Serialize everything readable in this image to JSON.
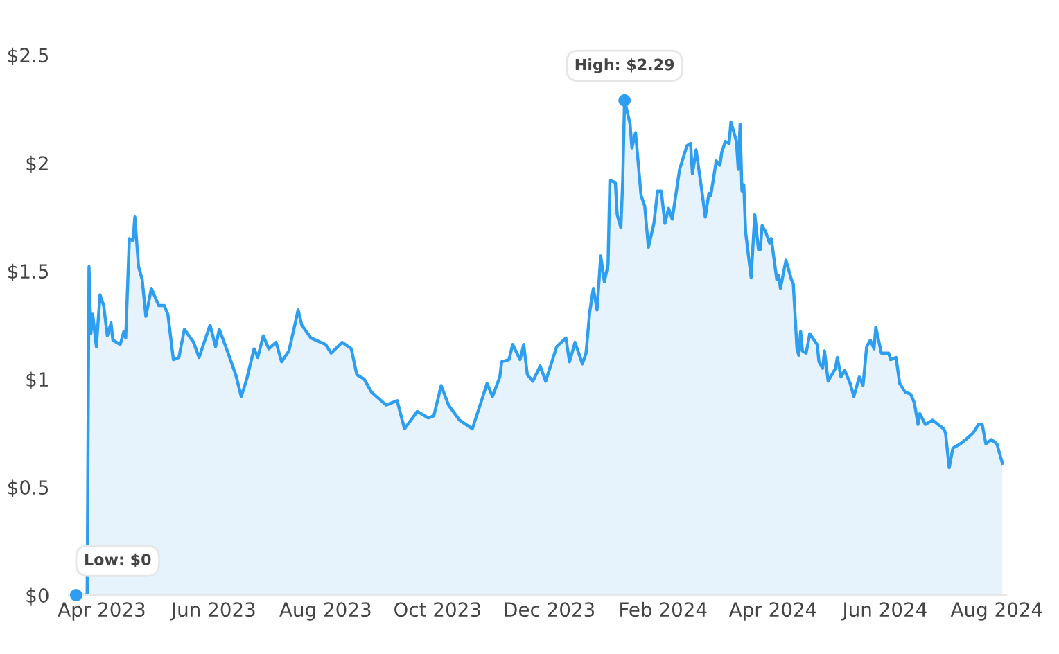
{
  "chart_data": {
    "type": "area",
    "color": "#2e9ef0",
    "grid": false,
    "legend": false,
    "marker": "none",
    "line_style": "solid",
    "xlim": [
      "2023-03-14",
      "2024-08-06"
    ],
    "ylim": [
      0,
      2.5
    ],
    "xticks": [
      {
        "value": "2023-04-01",
        "label": "Apr 2023"
      },
      {
        "value": "2023-06-01",
        "label": "Jun 2023"
      },
      {
        "value": "2023-08-01",
        "label": "Aug 2023"
      },
      {
        "value": "2023-10-01",
        "label": "Oct 2023"
      },
      {
        "value": "2023-12-01",
        "label": "Dec 2023"
      },
      {
        "value": "2024-02-01",
        "label": "Feb 2024"
      },
      {
        "value": "2024-04-01",
        "label": "Apr 2024"
      },
      {
        "value": "2024-06-01",
        "label": "Jun 2024"
      },
      {
        "value": "2024-08-01",
        "label": "Aug 2024"
      }
    ],
    "yticks": [
      {
        "value": 0,
        "label": "$0"
      },
      {
        "value": 0.5,
        "label": "$0.5"
      },
      {
        "value": 1,
        "label": "$1"
      },
      {
        "value": 1.5,
        "label": "$1.5"
      },
      {
        "value": 2,
        "label": "$2"
      },
      {
        "value": 2.5,
        "label": "$2.5"
      }
    ],
    "annotations": [
      {
        "text": "High: $2.29",
        "x": "2024-01-11",
        "y": 2.29
      },
      {
        "text": "Low: $0",
        "x": "2023-03-18",
        "y": 0
      }
    ],
    "x": [
      "2023-03-18",
      "2023-03-24",
      "2023-03-25",
      "2023-03-26",
      "2023-03-27",
      "2023-03-29",
      "2023-03-31",
      "2023-04-02",
      "2023-04-04",
      "2023-04-06",
      "2023-04-07",
      "2023-04-11",
      "2023-04-13",
      "2023-04-14",
      "2023-04-16",
      "2023-04-18",
      "2023-04-19",
      "2023-04-21",
      "2023-04-23",
      "2023-04-25",
      "2023-04-28",
      "2023-05-02",
      "2023-05-05",
      "2023-05-07",
      "2023-05-10",
      "2023-05-13",
      "2023-05-16",
      "2023-05-21",
      "2023-05-24",
      "2023-05-30",
      "2023-06-02",
      "2023-06-04",
      "2023-06-08",
      "2023-06-13",
      "2023-06-16",
      "2023-06-19",
      "2023-06-23",
      "2023-06-25",
      "2023-06-28",
      "2023-07-01",
      "2023-07-05",
      "2023-07-08",
      "2023-07-12",
      "2023-07-16",
      "2023-07-17",
      "2023-07-19",
      "2023-07-24",
      "2023-08-01",
      "2023-08-04",
      "2023-08-10",
      "2023-08-15",
      "2023-08-18",
      "2023-08-22",
      "2023-08-26",
      "2023-09-03",
      "2023-09-09",
      "2023-09-13",
      "2023-09-20",
      "2023-09-26",
      "2023-09-29",
      "2023-10-03",
      "2023-10-07",
      "2023-10-13",
      "2023-10-20",
      "2023-10-25",
      "2023-10-28",
      "2023-10-31",
      "2023-11-04",
      "2023-11-05",
      "2023-11-09",
      "2023-11-11",
      "2023-11-15",
      "2023-11-17",
      "2023-11-19",
      "2023-11-22",
      "2023-11-26",
      "2023-11-29",
      "2023-12-05",
      "2023-12-10",
      "2023-12-12",
      "2023-12-15",
      "2023-12-19",
      "2023-12-21",
      "2023-12-23",
      "2023-12-25",
      "2023-12-27",
      "2023-12-29",
      "2023-12-31",
      "2024-01-02",
      "2024-01-03",
      "2024-01-06",
      "2024-01-07",
      "2024-01-09",
      "2024-01-10",
      "2024-01-11",
      "2024-01-14",
      "2024-01-15",
      "2024-01-17",
      "2024-01-20",
      "2024-01-22",
      "2024-01-24",
      "2024-01-27",
      "2024-01-29",
      "2024-01-31",
      "2024-02-02",
      "2024-02-04",
      "2024-02-06",
      "2024-02-10",
      "2024-02-14",
      "2024-02-16",
      "2024-02-17",
      "2024-02-19",
      "2024-02-22",
      "2024-02-24",
      "2024-02-26",
      "2024-02-27",
      "2024-03-01",
      "2024-03-03",
      "2024-03-04",
      "2024-03-06",
      "2024-03-08",
      "2024-03-09",
      "2024-03-12",
      "2024-03-13",
      "2024-03-14",
      "2024-03-15",
      "2024-03-16",
      "2024-03-17",
      "2024-03-20",
      "2024-03-22",
      "2024-03-24",
      "2024-03-25",
      "2024-03-26",
      "2024-03-28",
      "2024-03-30",
      "2024-03-31",
      "2024-04-03",
      "2024-04-04",
      "2024-04-05",
      "2024-04-08",
      "2024-04-11",
      "2024-04-12",
      "2024-04-14",
      "2024-04-15",
      "2024-04-16",
      "2024-04-17",
      "2024-04-19",
      "2024-04-21",
      "2024-04-25",
      "2024-04-26",
      "2024-04-28",
      "2024-04-29",
      "2024-05-01",
      "2024-05-05",
      "2024-05-06",
      "2024-05-08",
      "2024-05-10",
      "2024-05-13",
      "2024-05-15",
      "2024-05-18",
      "2024-05-20",
      "2024-05-22",
      "2024-05-24",
      "2024-05-26",
      "2024-05-27",
      "2024-05-30",
      "2024-06-03",
      "2024-06-04",
      "2024-06-07",
      "2024-06-09",
      "2024-06-12",
      "2024-06-15",
      "2024-06-17",
      "2024-06-19",
      "2024-06-20",
      "2024-06-23",
      "2024-06-27",
      "2024-06-30",
      "2024-07-03",
      "2024-07-04",
      "2024-07-06",
      "2024-07-08",
      "2024-07-12",
      "2024-07-15",
      "2024-07-19",
      "2024-07-22",
      "2024-07-24",
      "2024-07-26",
      "2024-07-29",
      "2024-08-01",
      "2024-08-04"
    ],
    "values": [
      0,
      0,
      1.52,
      1.21,
      1.3,
      1.15,
      1.39,
      1.34,
      1.2,
      1.26,
      1.18,
      1.16,
      1.22,
      1.19,
      1.65,
      1.64,
      1.75,
      1.52,
      1.46,
      1.29,
      1.42,
      1.34,
      1.34,
      1.3,
      1.09,
      1.1,
      1.23,
      1.17,
      1.1,
      1.25,
      1.15,
      1.23,
      1.14,
      1.02,
      0.92,
      1.0,
      1.14,
      1.1,
      1.2,
      1.14,
      1.17,
      1.08,
      1.13,
      1.28,
      1.32,
      1.25,
      1.19,
      1.16,
      1.12,
      1.17,
      1.14,
      1.02,
      1.0,
      0.94,
      0.88,
      0.9,
      0.77,
      0.85,
      0.82,
      0.83,
      0.97,
      0.88,
      0.81,
      0.77,
      0.9,
      0.98,
      0.92,
      1.01,
      1.08,
      1.09,
      1.16,
      1.09,
      1.16,
      1.02,
      0.99,
      1.06,
      0.99,
      1.15,
      1.19,
      1.08,
      1.17,
      1.07,
      1.12,
      1.31,
      1.42,
      1.32,
      1.57,
      1.45,
      1.53,
      1.92,
      1.91,
      1.76,
      1.7,
      1.92,
      2.29,
      2.18,
      2.07,
      2.14,
      1.85,
      1.8,
      1.61,
      1.72,
      1.87,
      1.87,
      1.72,
      1.79,
      1.74,
      1.97,
      2.08,
      2.09,
      1.95,
      2.06,
      1.88,
      1.75,
      1.86,
      1.85,
      2.01,
      1.99,
      2.05,
      2.1,
      2.09,
      2.19,
      2.1,
      1.97,
      2.18,
      1.87,
      1.9,
      1.68,
      1.47,
      1.76,
      1.6,
      1.6,
      1.71,
      1.68,
      1.63,
      1.65,
      1.46,
      1.48,
      1.42,
      1.55,
      1.46,
      1.44,
      1.14,
      1.11,
      1.22,
      1.13,
      1.12,
      1.21,
      1.16,
      1.08,
      1.05,
      1.13,
      0.99,
      1.05,
      1.1,
      1.01,
      1.04,
      0.98,
      0.92,
      1.01,
      0.97,
      1.15,
      1.18,
      1.14,
      1.24,
      1.12,
      1.12,
      1.09,
      1.1,
      0.98,
      0.94,
      0.93,
      0.89,
      0.79,
      0.84,
      0.79,
      0.81,
      0.79,
      0.77,
      0.75,
      0.59,
      0.68,
      0.7,
      0.72,
      0.75,
      0.79,
      0.79,
      0.7,
      0.72,
      0.7,
      0.61
    ]
  }
}
